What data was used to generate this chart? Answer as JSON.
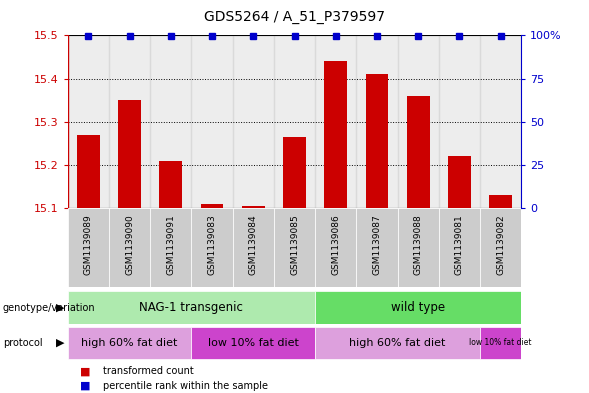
{
  "title": "GDS5264 / A_51_P379597",
  "samples": [
    "GSM1139089",
    "GSM1139090",
    "GSM1139091",
    "GSM1139083",
    "GSM1139084",
    "GSM1139085",
    "GSM1139086",
    "GSM1139087",
    "GSM1139088",
    "GSM1139081",
    "GSM1139082"
  ],
  "bar_values": [
    15.27,
    15.35,
    15.21,
    15.11,
    15.105,
    15.265,
    15.44,
    15.41,
    15.36,
    15.22,
    15.13
  ],
  "bar_color": "#CC0000",
  "percentile_color": "#0000CC",
  "ylim_left": [
    15.1,
    15.5
  ],
  "ylim_right": [
    0,
    100
  ],
  "yticks_left": [
    15.1,
    15.2,
    15.3,
    15.4,
    15.5
  ],
  "yticks_right": [
    0,
    25,
    50,
    75,
    100
  ],
  "genotype_groups": [
    {
      "label": "NAG-1 transgenic",
      "start": 0,
      "end": 6,
      "color": "#AEEAAE"
    },
    {
      "label": "wild type",
      "start": 6,
      "end": 11,
      "color": "#66DD66"
    }
  ],
  "protocol_groups": [
    {
      "label": "high 60% fat diet",
      "start": 0,
      "end": 3,
      "color": "#DDA0DD"
    },
    {
      "label": "low 10% fat diet",
      "start": 3,
      "end": 6,
      "color": "#CC44CC"
    },
    {
      "label": "high 60% fat diet",
      "start": 6,
      "end": 10,
      "color": "#DDA0DD"
    },
    {
      "label": "low 10% fat diet",
      "start": 10,
      "end": 11,
      "color": "#CC44CC"
    }
  ],
  "left_axis_color": "#CC0000",
  "right_axis_color": "#0000CC",
  "col_bg_color": "#CCCCCC",
  "legend_square_size": 8
}
